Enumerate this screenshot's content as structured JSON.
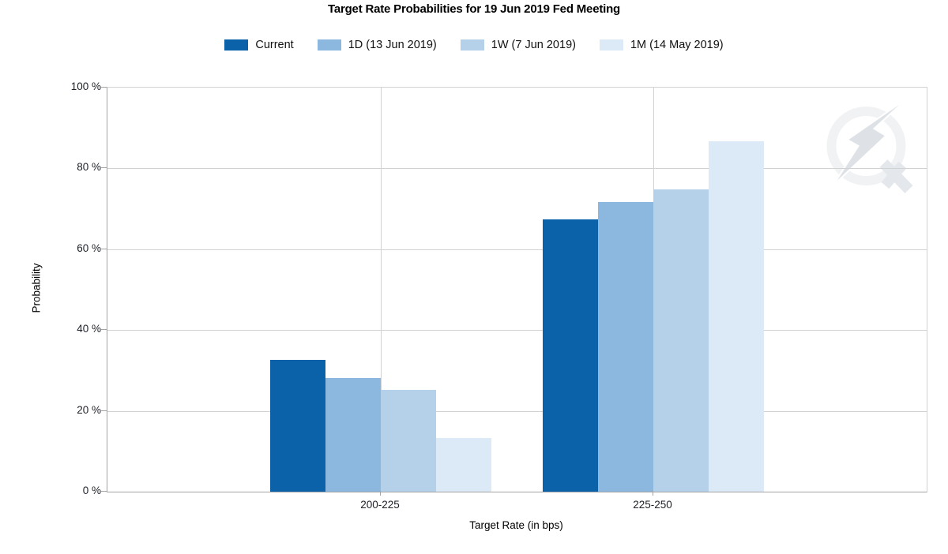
{
  "chart_data": {
    "type": "bar",
    "title": "Target Rate Probabilities for 19 Jun 2019 Fed Meeting",
    "xlabel": "Target Rate (in bps)",
    "ylabel": "Probability",
    "categories": [
      "200-225",
      "225-250"
    ],
    "series": [
      {
        "name": "Current",
        "color": "#0b62a8",
        "values": [
          32.7,
          67.4
        ]
      },
      {
        "name": "1D (13 Jun 2019)",
        "color": "#8cb8df",
        "values": [
          28.2,
          71.6
        ]
      },
      {
        "name": "1W (7 Jun 2019)",
        "color": "#b5d1ea",
        "values": [
          25.2,
          74.9
        ]
      },
      {
        "name": "1M (14 May 2019)",
        "color": "#dce9f6",
        "values": [
          13.3,
          86.7
        ]
      }
    ],
    "ylim": [
      0,
      100
    ],
    "yticks": [
      "0 %",
      "20 %",
      "40 %",
      "60 %",
      "80 %",
      "100 %"
    ],
    "grid": true,
    "legend_position": "top",
    "grid_color": "#d2d2d2",
    "axis_color": "#a3a3a3",
    "tick_text_color": "#1e2028",
    "watermark": "q-lightning-logo"
  }
}
